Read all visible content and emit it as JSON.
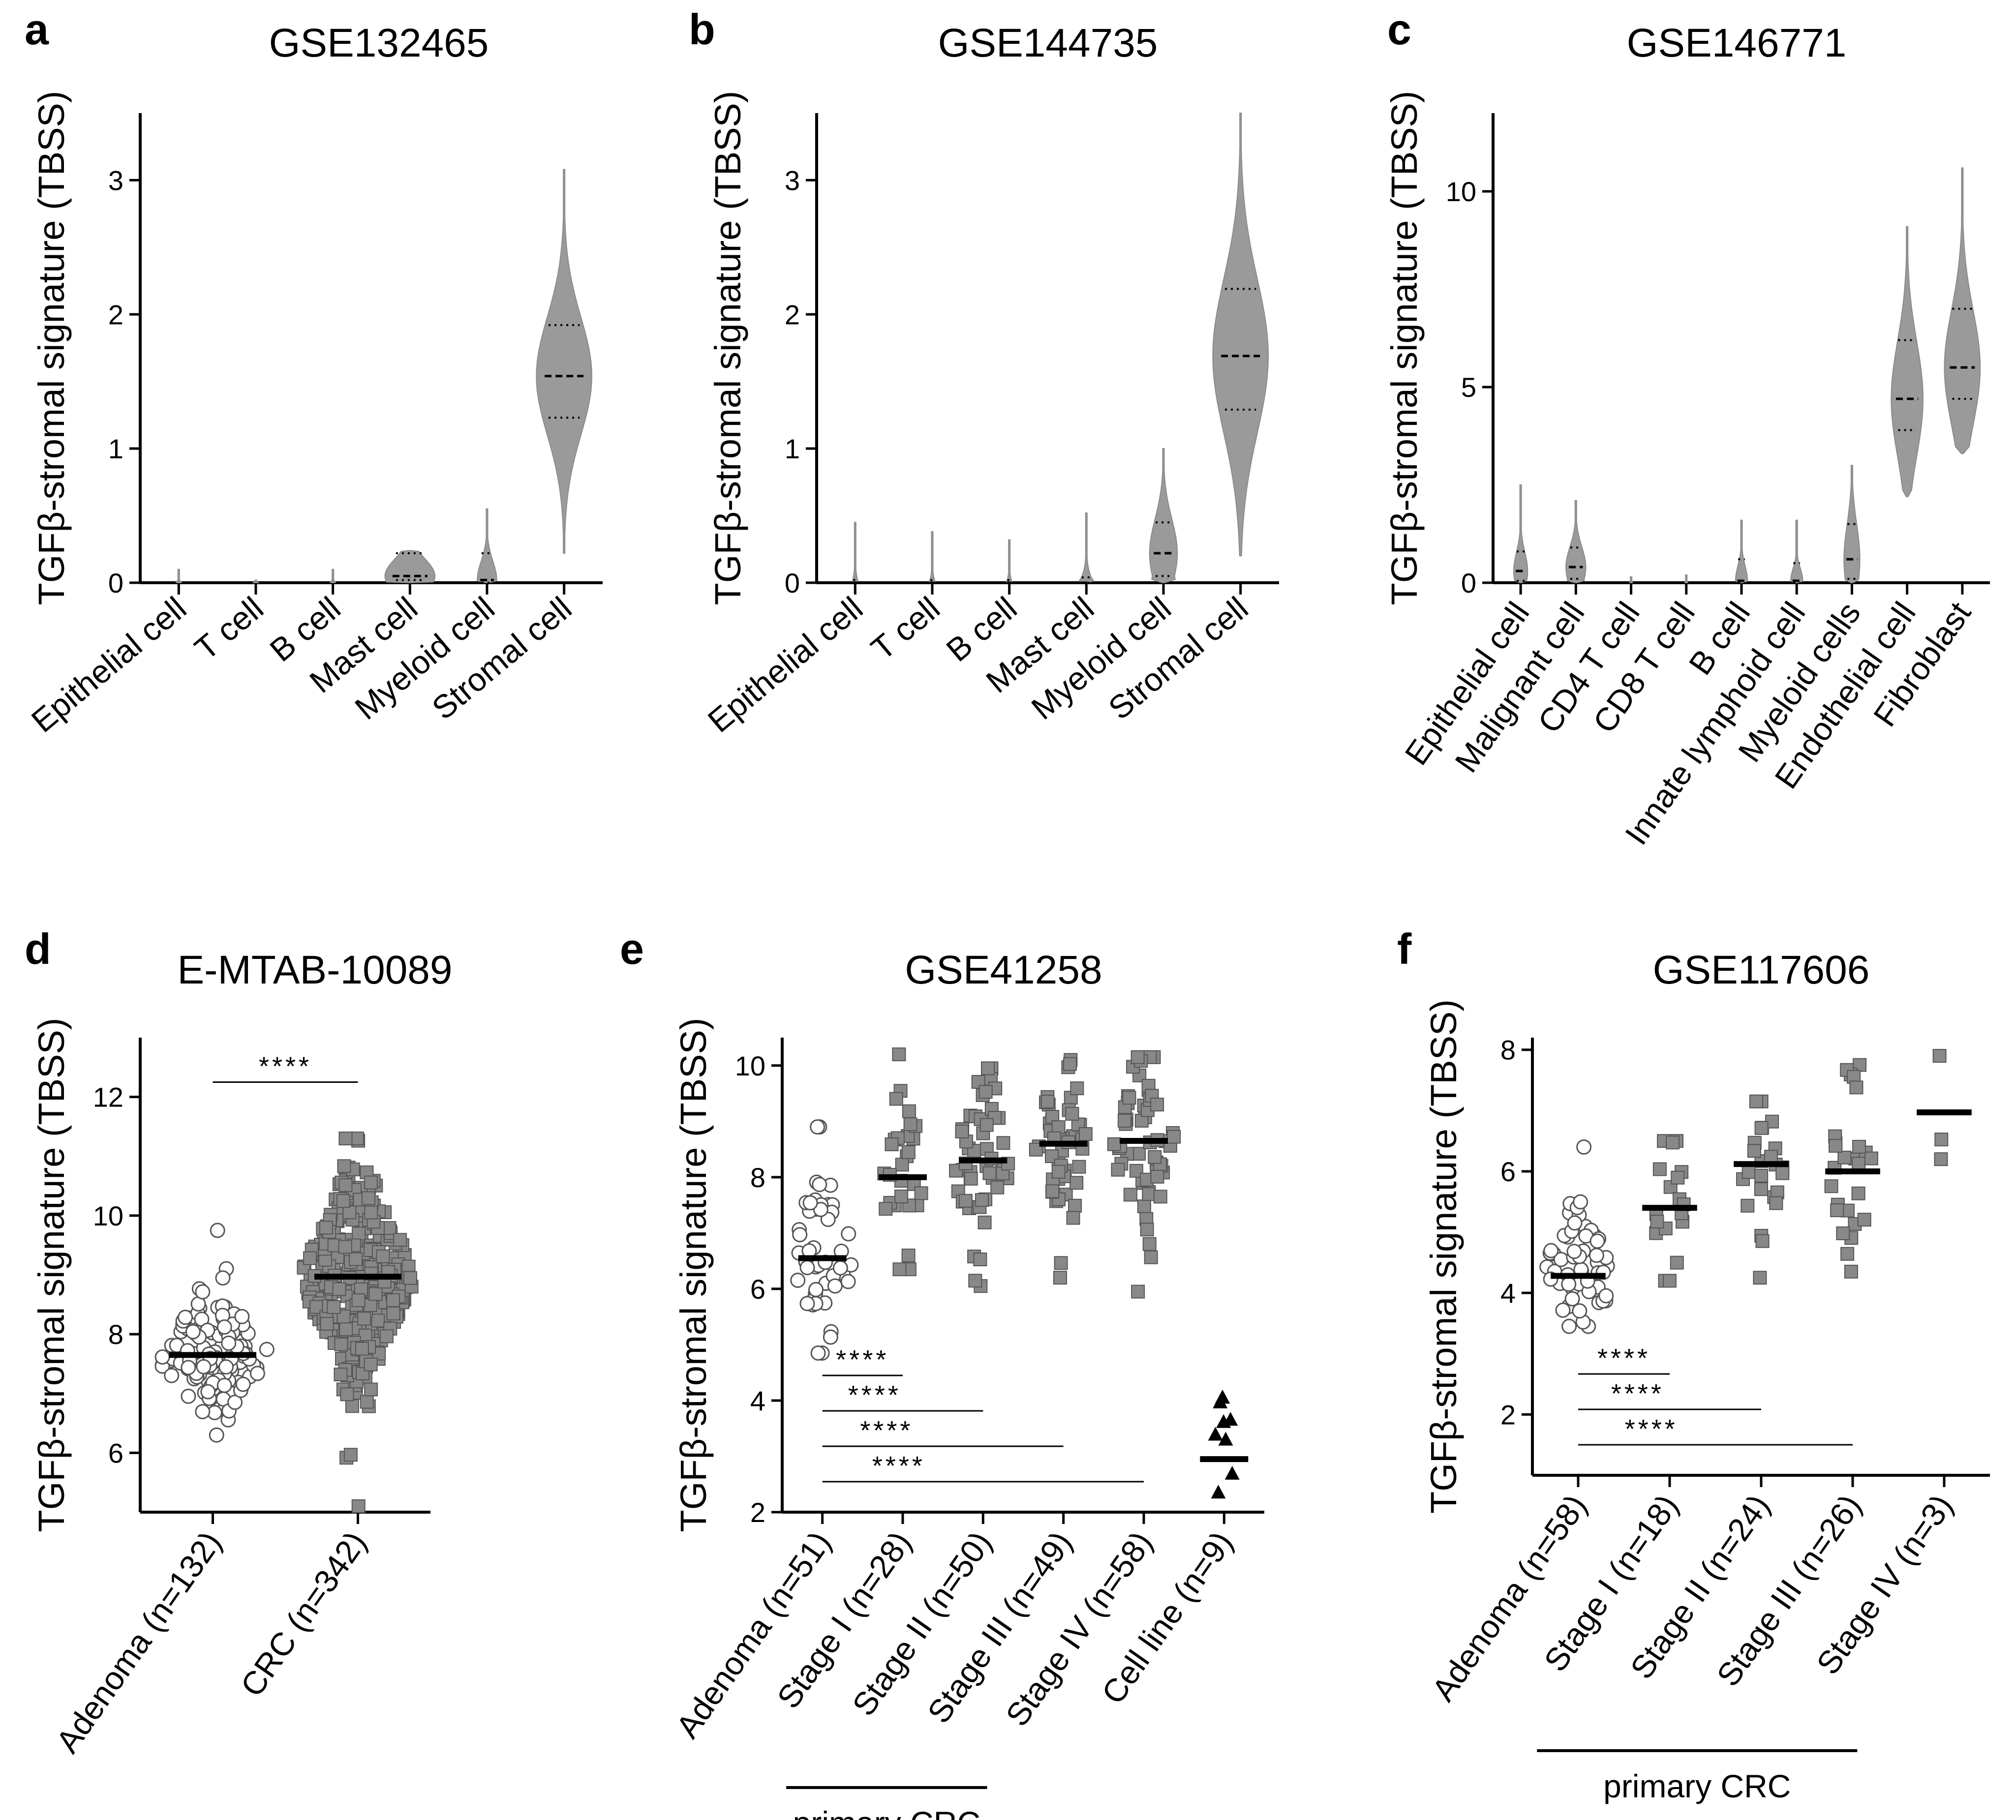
{
  "colors": {
    "violin": "#9a9a9a",
    "square": "#888888",
    "line": "#000000"
  },
  "chart_data": [
    {
      "panel": "a",
      "title": "GSE132465",
      "type": "violin",
      "ylabel": "TGFβ-stromal signature (TBSS)",
      "ylim": [
        0,
        3.5
      ],
      "yticks": [
        0,
        1,
        2,
        3
      ],
      "categories": [
        {
          "label": "Epithelial cell",
          "max": 0.1,
          "median": 0,
          "q1": 0,
          "q3": 0,
          "mode_w": 0.1
        },
        {
          "label": "T cell",
          "max": 0.02,
          "median": 0,
          "q1": 0,
          "q3": 0,
          "mode_w": 0.1
        },
        {
          "label": "B cell",
          "max": 0.1,
          "median": 0,
          "q1": 0,
          "q3": 0,
          "mode_w": 0.1
        },
        {
          "label": "Mast cell",
          "max": 0.24,
          "median": 0.05,
          "q1": 0.02,
          "q3": 0.22,
          "mode_w": 0.9
        },
        {
          "label": "Myeloid cell",
          "max": 0.55,
          "median": 0.02,
          "q1": 0,
          "q3": 0.22,
          "mode_w": 0.35
        },
        {
          "label": "Stromal cell",
          "min": 0.22,
          "max": 3.08,
          "median": 1.54,
          "q1": 1.23,
          "q3": 1.92,
          "mode_w": 1.0
        }
      ]
    },
    {
      "panel": "b",
      "title": "GSE144735",
      "type": "violin",
      "ylabel": "TGFβ-stromal signature (TBSS)",
      "ylim": [
        0,
        3.5
      ],
      "yticks": [
        0,
        1,
        2,
        3
      ],
      "categories": [
        {
          "label": "Epithelial cell",
          "max": 0.45,
          "median": 0,
          "q1": 0,
          "q3": 0.02,
          "mode_w": 0.12
        },
        {
          "label": "T cell",
          "max": 0.38,
          "median": 0,
          "q1": 0,
          "q3": 0.02,
          "mode_w": 0.12
        },
        {
          "label": "B cell",
          "max": 0.32,
          "median": 0,
          "q1": 0,
          "q3": 0.02,
          "mode_w": 0.12
        },
        {
          "label": "Mast cell",
          "max": 0.52,
          "median": 0,
          "q1": 0,
          "q3": 0.04,
          "mode_w": 0.3
        },
        {
          "label": "Myeloid cell",
          "max": 1.0,
          "median": 0.22,
          "q1": 0.05,
          "q3": 0.45,
          "mode_w": 0.5
        },
        {
          "label": "Stromal cell",
          "min": 0.2,
          "max": 3.5,
          "median": 1.69,
          "q1": 1.29,
          "q3": 2.19,
          "mode_w": 1.0
        }
      ]
    },
    {
      "panel": "c",
      "title": "GSE146771",
      "type": "violin",
      "ylabel": "TGFβ-stromal signature (TBSS)",
      "ylim": [
        0,
        12
      ],
      "yticks": [
        0,
        5,
        10
      ],
      "categories": [
        {
          "label": "Epithelial cell",
          "max": 2.5,
          "median": 0.3,
          "q1": 0.05,
          "q3": 0.8,
          "mode_w": 0.35
        },
        {
          "label": "Malignant cell",
          "max": 2.1,
          "median": 0.4,
          "q1": 0.1,
          "q3": 0.9,
          "mode_w": 0.5
        },
        {
          "label": "CD4 T cell",
          "max": 0.15,
          "median": 0,
          "q1": 0,
          "q3": 0,
          "mode_w": 0.08
        },
        {
          "label": "CD8 T cell",
          "max": 0.2,
          "median": 0,
          "q1": 0,
          "q3": 0,
          "mode_w": 0.08
        },
        {
          "label": "B cell",
          "max": 1.6,
          "median": 0.05,
          "q1": 0,
          "q3": 0.6,
          "mode_w": 0.3
        },
        {
          "label": "Innate lymphoid cell",
          "max": 1.6,
          "median": 0.05,
          "q1": 0,
          "q3": 0.5,
          "mode_w": 0.3
        },
        {
          "label": "Myeloid cells",
          "max": 3.0,
          "median": 0.6,
          "q1": 0.1,
          "q3": 1.5,
          "mode_w": 0.4
        },
        {
          "label": "Endothelial cell",
          "min": 2.2,
          "max": 9.1,
          "median": 4.7,
          "q1": 3.9,
          "q3": 6.2,
          "mode_w": 0.8
        },
        {
          "label": "Fibroblast",
          "min": 3.3,
          "max": 10.6,
          "median": 5.5,
          "q1": 4.7,
          "q3": 7.0,
          "mode_w": 0.9
        }
      ]
    },
    {
      "panel": "d",
      "title": "E-MTAB-10089",
      "type": "scatter",
      "ylabel": "TGFβ-stromal signature (TBSS)",
      "ylim": [
        5,
        13
      ],
      "yticks": [
        6,
        8,
        10,
        12
      ],
      "categories": [
        {
          "label": "Adenoma (n=132)",
          "n": 132,
          "median": 7.65,
          "min": 6.3,
          "max": 9.75,
          "sd": 0.55,
          "marker": "circle"
        },
        {
          "label": "CRC (n=342)",
          "n": 342,
          "median": 8.97,
          "min": 5.1,
          "max": 11.3,
          "sd": 0.9,
          "marker": "square"
        }
      ],
      "significance": [
        {
          "from": 0,
          "to": 1,
          "label": "****"
        }
      ]
    },
    {
      "panel": "e",
      "title": "GSE41258",
      "type": "scatter",
      "ylabel": "TGFβ-stromal signature (TBSS)",
      "ylim": [
        2,
        10.5
      ],
      "yticks": [
        2,
        4,
        6,
        8,
        10
      ],
      "categories": [
        {
          "label": "Adenoma (n=51)",
          "n": 51,
          "median": 6.55,
          "min": 4.85,
          "max": 8.9,
          "sd": 0.85,
          "marker": "circle"
        },
        {
          "label": "Stage I (n=28)",
          "n": 28,
          "median": 8.0,
          "min": 6.35,
          "max": 10.2,
          "sd": 0.95,
          "marker": "square"
        },
        {
          "label": "Stage II (n=50)",
          "n": 50,
          "median": 8.3,
          "min": 6.05,
          "max": 9.95,
          "sd": 0.95,
          "marker": "square"
        },
        {
          "label": "Stage III (n=49)",
          "n": 49,
          "median": 8.6,
          "min": 6.2,
          "max": 10.1,
          "sd": 0.75,
          "marker": "square"
        },
        {
          "label": "Stage IV (n=58)",
          "n": 58,
          "median": 8.65,
          "min": 5.95,
          "max": 10.15,
          "sd": 0.9,
          "marker": "square"
        },
        {
          "label": "Cell line (n=9)",
          "n": 9,
          "median": 2.95,
          "min": 2.35,
          "max": 4.05,
          "sd": 0.55,
          "marker": "triangle"
        }
      ],
      "significance": [
        {
          "from": 0,
          "to": 1,
          "label": "****"
        },
        {
          "from": 0,
          "to": 2,
          "label": "****"
        },
        {
          "from": 0,
          "to": 3,
          "label": "****"
        },
        {
          "from": 0,
          "to": 4,
          "label": "****"
        }
      ],
      "bracket": {
        "from": 0,
        "to": 2,
        "label": "primary CRC"
      }
    },
    {
      "panel": "f",
      "title": "GSE117606",
      "type": "scatter",
      "ylabel": "TGFβ-stromal signature (TBSS)",
      "ylim": [
        1,
        8.2
      ],
      "yticks": [
        2,
        4,
        6,
        8
      ],
      "categories": [
        {
          "label": "Adenoma (n=58)",
          "n": 58,
          "median": 4.28,
          "min": 3.45,
          "max": 6.4,
          "sd": 0.6,
          "marker": "circle"
        },
        {
          "label": "Stage I (n=18)",
          "n": 18,
          "median": 5.4,
          "min": 4.2,
          "max": 6.5,
          "sd": 0.65,
          "marker": "square"
        },
        {
          "label": "Stage II (n=24)",
          "n": 24,
          "median": 6.12,
          "min": 4.25,
          "max": 7.15,
          "sd": 0.7,
          "marker": "square"
        },
        {
          "label": "Stage III (n=26)",
          "n": 26,
          "median": 6.0,
          "min": 4.35,
          "max": 7.75,
          "sd": 1.0,
          "marker": "square"
        },
        {
          "label": "Stage IV (n=3)",
          "n": 3,
          "median": 6.97,
          "min": 6.2,
          "max": 7.9,
          "sd": 0.6,
          "marker": "square"
        }
      ],
      "significance": [
        {
          "from": 0,
          "to": 1,
          "label": "****"
        },
        {
          "from": 0,
          "to": 2,
          "label": "****"
        },
        {
          "from": 0,
          "to": 3,
          "label": "****"
        }
      ],
      "bracket": {
        "from": 0,
        "to": 3,
        "label": "primary CRC"
      }
    }
  ]
}
